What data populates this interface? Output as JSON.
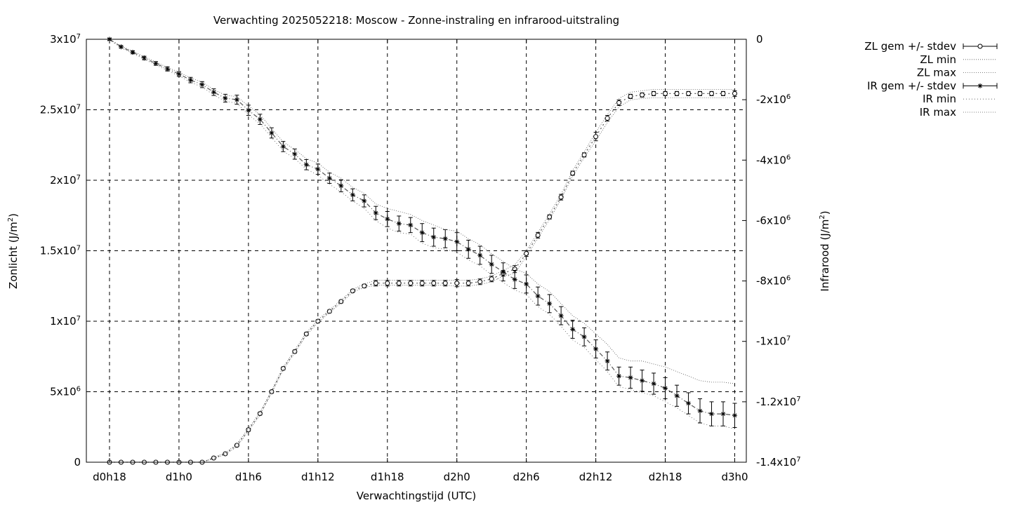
{
  "chart_data": {
    "type": "line",
    "title": "Verwachting 2025052218: Moscow - Zonne-instraling en infrarood-uitstraling",
    "xlabel": "Verwachtingstijd (UTC)",
    "ylabel_left": "Zonlicht (J/m",
    "ylabel_right": "Infrarood (J/m",
    "ylabel_unit_exp": "2",
    "ylabel_close": ")",
    "x_unit": "hours since d0h18",
    "xlim": [
      -2,
      55
    ],
    "ylim_left": [
      0,
      30000000
    ],
    "ylim_right": [
      -14000000,
      0
    ],
    "xticks": [
      {
        "x": 0,
        "label": "d0h18"
      },
      {
        "x": 6,
        "label": "d1h0"
      },
      {
        "x": 12,
        "label": "d1h6"
      },
      {
        "x": 18,
        "label": "d1h12"
      },
      {
        "x": 24,
        "label": "d1h18"
      },
      {
        "x": 30,
        "label": "d2h0"
      },
      {
        "x": 36,
        "label": "d2h6"
      },
      {
        "x": 42,
        "label": "d2h12"
      },
      {
        "x": 48,
        "label": "d2h18"
      },
      {
        "x": 54,
        "label": "d3h0"
      }
    ],
    "yticks_left": [
      {
        "v": 0,
        "label": "0",
        "exp": ""
      },
      {
        "v": 5000000,
        "label": "5x10",
        "exp": "6"
      },
      {
        "v": 10000000,
        "label": "1x10",
        "exp": "7"
      },
      {
        "v": 15000000,
        "label": "1.5x10",
        "exp": "7"
      },
      {
        "v": 20000000,
        "label": "2x10",
        "exp": "7"
      },
      {
        "v": 25000000,
        "label": "2.5x10",
        "exp": "7"
      },
      {
        "v": 30000000,
        "label": "3x10",
        "exp": "7"
      }
    ],
    "yticks_right": [
      {
        "v": 0,
        "label": "0",
        "exp": ""
      },
      {
        "v": -2000000,
        "label": "-2x10",
        "exp": "6"
      },
      {
        "v": -4000000,
        "label": "-4x10",
        "exp": "6"
      },
      {
        "v": -6000000,
        "label": "-6x10",
        "exp": "6"
      },
      {
        "v": -8000000,
        "label": "-8x10",
        "exp": "6"
      },
      {
        "v": -10000000,
        "label": "-1x10",
        "exp": "7"
      },
      {
        "v": -12000000,
        "label": "-1.2x10",
        "exp": "7"
      },
      {
        "v": -14000000,
        "label": "-1.4x10",
        "exp": "7"
      }
    ],
    "grid": true,
    "legend_position": "outside-top-right",
    "legend": [
      "ZL gem +/- stdev",
      "ZL min",
      "ZL max",
      "IR gem +/- stdev",
      "IR min",
      "IR max"
    ],
    "x": [
      0,
      1,
      2,
      3,
      4,
      5,
      6,
      7,
      8,
      9,
      10,
      11,
      12,
      13,
      14,
      15,
      16,
      17,
      18,
      19,
      20,
      21,
      22,
      23,
      24,
      25,
      26,
      27,
      28,
      29,
      30,
      31,
      32,
      33,
      34,
      35,
      36,
      37,
      38,
      39,
      40,
      41,
      42,
      43,
      44,
      45,
      46,
      47,
      48,
      49,
      50,
      51,
      52,
      53,
      54
    ],
    "series": [
      {
        "name": "ZL gem +/- stdev",
        "axis": "left",
        "marker": "circle",
        "values": [
          0,
          0,
          0,
          0,
          0,
          0,
          0,
          0,
          0,
          300000,
          600000,
          1200000,
          2300000,
          3450000,
          5000000,
          6650000,
          7850000,
          9100000,
          10000000,
          10700000,
          11400000,
          12150000,
          12500000,
          12700000,
          12700000,
          12700000,
          12700000,
          12700000,
          12700000,
          12700000,
          12700000,
          12700000,
          12800000,
          13000000,
          13400000,
          13700000,
          14800000,
          16100000,
          17400000,
          18800000,
          20500000,
          21800000,
          23100000,
          24400000,
          25500000,
          25950000,
          26050000,
          26150000,
          26150000,
          26150000,
          26150000,
          26150000,
          26150000,
          26150000,
          26150000
        ],
        "stdev": [
          0,
          0,
          0,
          0,
          0,
          0,
          0,
          0,
          0,
          40000,
          60000,
          80000,
          100000,
          100000,
          100000,
          100000,
          100000,
          100000,
          100000,
          100000,
          100000,
          100000,
          120000,
          200000,
          200000,
          200000,
          200000,
          200000,
          200000,
          200000,
          250000,
          200000,
          200000,
          200000,
          200000,
          250000,
          200000,
          200000,
          150000,
          200000,
          150000,
          150000,
          300000,
          200000,
          200000,
          150000,
          150000,
          150000,
          150000,
          150000,
          150000,
          150000,
          150000,
          150000,
          200000
        ]
      },
      {
        "name": "ZL min",
        "axis": "left",
        "values": [
          0,
          0,
          0,
          0,
          0,
          0,
          0,
          0,
          0,
          250000,
          550000,
          1100000,
          2200000,
          3350000,
          4900000,
          6550000,
          7750000,
          9000000,
          9900000,
          10600000,
          11300000,
          12050000,
          12400000,
          12550000,
          12550000,
          12550000,
          12550000,
          12550000,
          12550000,
          12550000,
          12500000,
          12500000,
          12600000,
          12800000,
          13200000,
          13400000,
          14600000,
          15900000,
          17200000,
          18650000,
          20300000,
          21600000,
          22800000,
          24100000,
          25200000,
          25700000,
          25800000,
          25850000,
          25850000,
          25850000,
          25850000,
          25850000,
          25850000,
          25850000,
          25850000
        ]
      },
      {
        "name": "ZL max",
        "axis": "left",
        "values": [
          0,
          0,
          0,
          0,
          0,
          0,
          0,
          0,
          0,
          350000,
          650000,
          1300000,
          2400000,
          3550000,
          5100000,
          6750000,
          7950000,
          9200000,
          10100000,
          10800000,
          11500000,
          12250000,
          12650000,
          12900000,
          12900000,
          12900000,
          12900000,
          12900000,
          12900000,
          12900000,
          12900000,
          12900000,
          13000000,
          13200000,
          13600000,
          14000000,
          15000000,
          16300000,
          17600000,
          19000000,
          20700000,
          22000000,
          23400000,
          24650000,
          25800000,
          26250000,
          26350000,
          26450000,
          26450000,
          26450000,
          26450000,
          26450000,
          26450000,
          26450000,
          26450000
        ]
      },
      {
        "name": "IR gem +/- stdev",
        "axis": "right",
        "marker": "star",
        "values": [
          0,
          -250000,
          -430000,
          -620000,
          -800000,
          -980000,
          -1150000,
          -1350000,
          -1500000,
          -1750000,
          -1950000,
          -2000000,
          -2350000,
          -2650000,
          -3100000,
          -3550000,
          -3800000,
          -4150000,
          -4300000,
          -4600000,
          -4850000,
          -5150000,
          -5350000,
          -5750000,
          -5950000,
          -6100000,
          -6150000,
          -6400000,
          -6550000,
          -6600000,
          -6700000,
          -6950000,
          -7150000,
          -7450000,
          -7700000,
          -7950000,
          -8100000,
          -8500000,
          -8750000,
          -9150000,
          -9600000,
          -9850000,
          -10250000,
          -10650000,
          -11150000,
          -11200000,
          -11300000,
          -11400000,
          -11550000,
          -11800000,
          -12050000,
          -12300000,
          -12400000,
          -12400000,
          -12450000
        ],
        "stdev": [
          30000,
          40000,
          50000,
          60000,
          60000,
          70000,
          80000,
          90000,
          100000,
          110000,
          130000,
          150000,
          170000,
          170000,
          170000,
          170000,
          170000,
          170000,
          170000,
          170000,
          200000,
          200000,
          200000,
          220000,
          250000,
          250000,
          250000,
          300000,
          300000,
          300000,
          300000,
          300000,
          300000,
          300000,
          300000,
          300000,
          300000,
          300000,
          300000,
          300000,
          300000,
          300000,
          300000,
          300000,
          300000,
          350000,
          350000,
          350000,
          350000,
          350000,
          350000,
          400000,
          400000,
          400000,
          400000
        ]
      },
      {
        "name": "IR min",
        "axis": "right",
        "values": [
          -20000,
          -280000,
          -470000,
          -660000,
          -850000,
          -1030000,
          -1210000,
          -1420000,
          -1580000,
          -1840000,
          -2050000,
          -2120000,
          -2500000,
          -2800000,
          -3250000,
          -3700000,
          -3950000,
          -4300000,
          -4500000,
          -4800000,
          -5050000,
          -5350000,
          -5600000,
          -6000000,
          -6250000,
          -6400000,
          -6450000,
          -6750000,
          -6900000,
          -6950000,
          -7050000,
          -7300000,
          -7500000,
          -7800000,
          -8050000,
          -8300000,
          -8450000,
          -8850000,
          -9100000,
          -9500000,
          -9950000,
          -10200000,
          -10600000,
          -11000000,
          -11500000,
          -11600000,
          -11700000,
          -11800000,
          -12000000,
          -12200000,
          -12450000,
          -12700000,
          -12800000,
          -12800000,
          -12900000
        ]
      },
      {
        "name": "IR max",
        "axis": "right",
        "values": [
          0,
          -220000,
          -390000,
          -580000,
          -750000,
          -930000,
          -1090000,
          -1280000,
          -1420000,
          -1660000,
          -1850000,
          -1900000,
          -2200000,
          -2500000,
          -2950000,
          -3400000,
          -3650000,
          -3950000,
          -4100000,
          -4400000,
          -4600000,
          -4900000,
          -5100000,
          -5450000,
          -5600000,
          -5700000,
          -5800000,
          -6000000,
          -6150000,
          -6300000,
          -6350000,
          -6600000,
          -6800000,
          -7100000,
          -7350000,
          -7600000,
          -7750000,
          -8100000,
          -8350000,
          -8750000,
          -9150000,
          -9400000,
          -9750000,
          -10100000,
          -10550000,
          -10650000,
          -10650000,
          -10750000,
          -10850000,
          -11000000,
          -11150000,
          -11300000,
          -11350000,
          -11350000,
          -11400000
        ]
      }
    ]
  }
}
